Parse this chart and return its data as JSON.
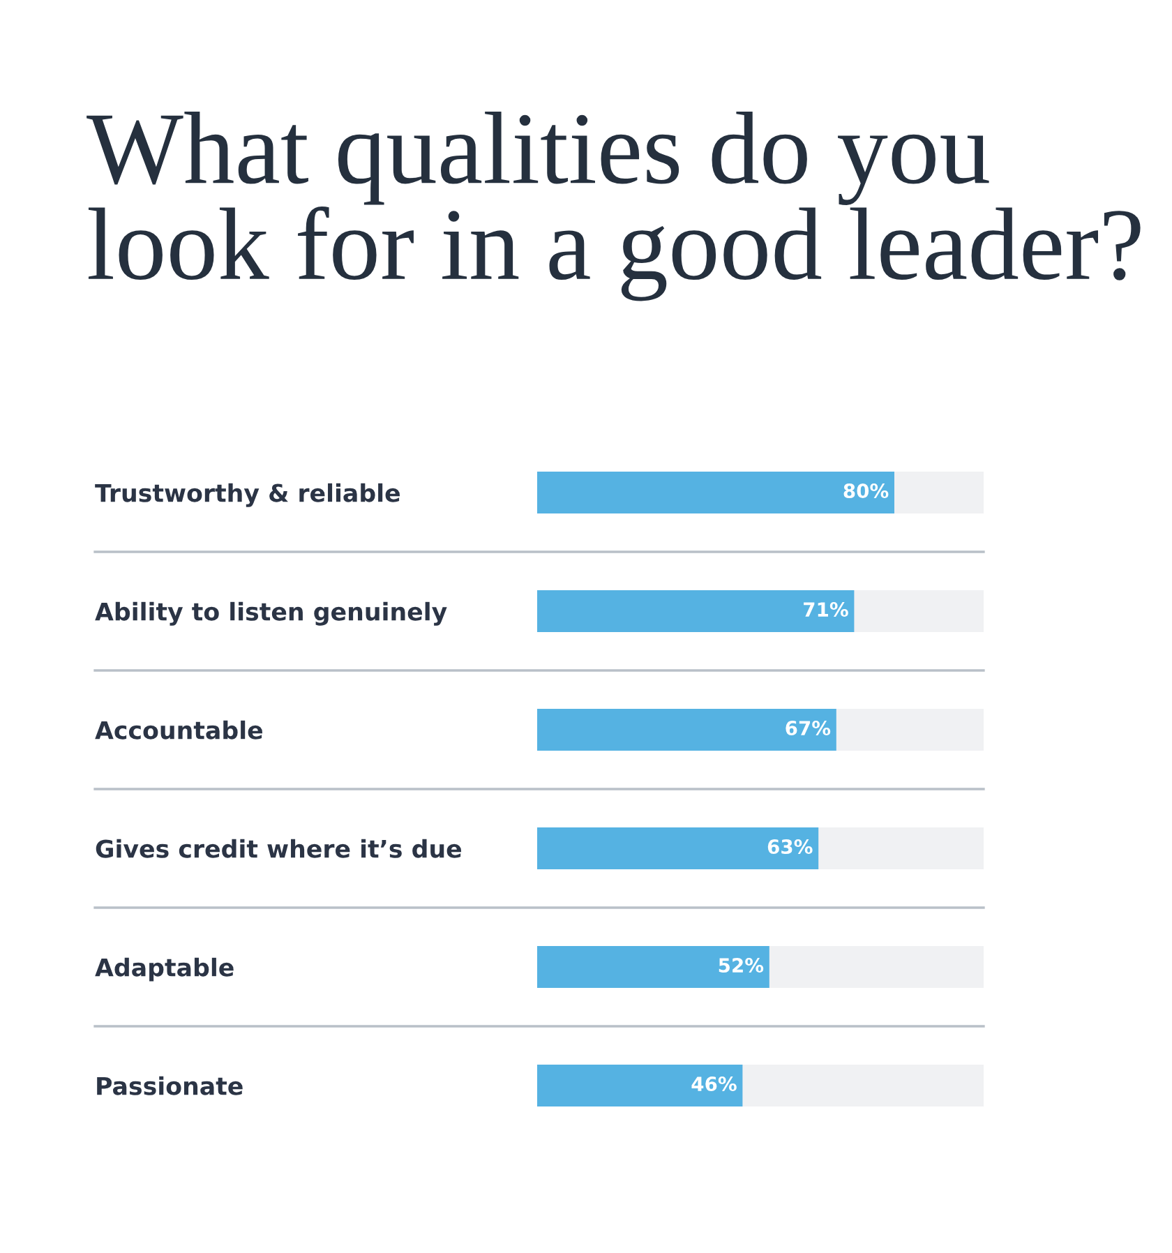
{
  "chart_data": {
    "type": "bar",
    "orientation": "horizontal",
    "title": "What qualities do you look for in a good leader?",
    "categories": [
      "Trustworthy & reliable",
      "Ability to listen genuinely",
      "Accountable",
      "Gives credit where it’s due",
      "Adaptable",
      "Passionate"
    ],
    "values": [
      80,
      71,
      67,
      63,
      52,
      46
    ],
    "value_labels": [
      "80%",
      "71%",
      "67%",
      "63%",
      "52%",
      "46%"
    ],
    "color": "#55b2e2",
    "xlim": [
      0,
      100
    ],
    "grid": "y",
    "tick_labels": "y"
  }
}
